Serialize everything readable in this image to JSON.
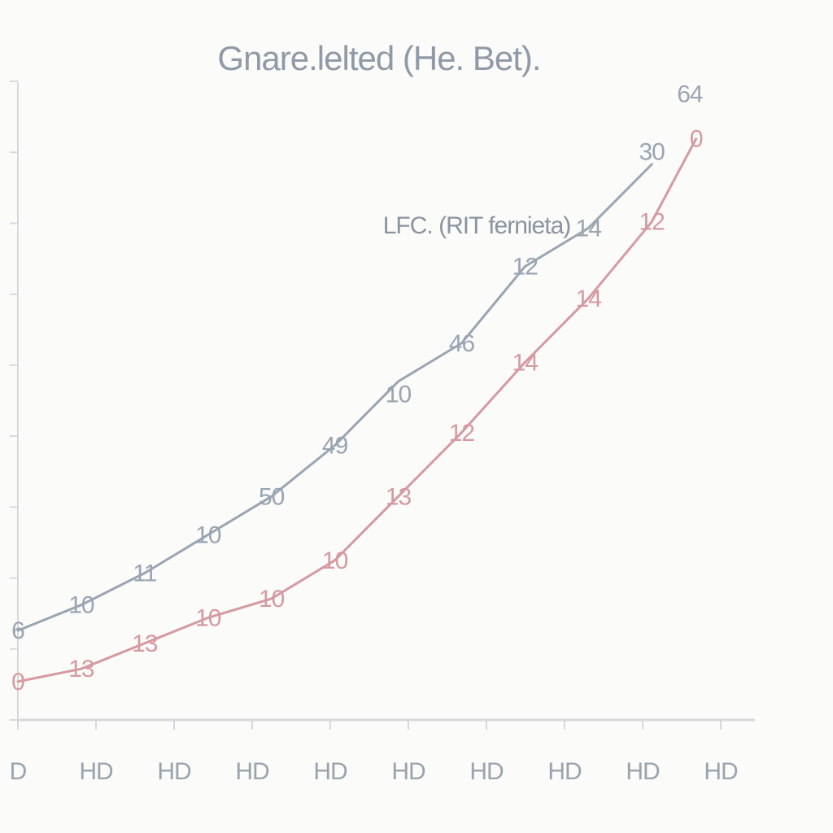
{
  "chart_data": {
    "type": "line",
    "title": "Gnare.lelted (He. Bet).",
    "annotation": "LFC. (RIT fernieta)",
    "xlabel": "",
    "ylabel": "",
    "categories": [
      "H",
      "H",
      "H",
      "H",
      "H",
      "H",
      "H",
      "H",
      "H",
      "H"
    ],
    "x_tick_labels": [
      "D",
      "HD",
      "HD",
      "HD",
      "HD",
      "HD",
      "HD",
      "HD",
      "HD",
      "HD"
    ],
    "x_count": 11,
    "ylim": [
      0,
      100
    ],
    "grid": false,
    "series": [
      {
        "color": "#9aa5b2",
        "x": [
          0,
          1,
          2,
          3,
          4,
          5,
          6,
          7,
          8,
          9,
          10
        ],
        "values": [
          14,
          18,
          23,
          29,
          35,
          43,
          53,
          59,
          71,
          77,
          87
        ],
        "labels": [
          "6",
          "10",
          "11",
          "10",
          "50",
          "49",
          "10",
          "46",
          "12",
          "14",
          "30",
          "64"
        ],
        "label_x": [
          0,
          1,
          2,
          3,
          4,
          5,
          6,
          7,
          8,
          9,
          10,
          10.6
        ],
        "label_y": [
          14,
          18,
          23,
          29,
          35,
          43,
          51,
          59,
          71,
          77,
          89,
          98
        ]
      },
      {
        "color": "#d59aa0",
        "x": [
          0,
          1,
          2,
          3,
          4,
          5,
          6,
          7,
          8,
          9,
          10,
          10.7
        ],
        "values": [
          6,
          8,
          12,
          16,
          19,
          25,
          35,
          45,
          56,
          66,
          78,
          91
        ],
        "labels": [
          "0",
          "13",
          "13",
          "10",
          "10",
          "10",
          "13",
          "12",
          "14",
          "14",
          "12",
          "0"
        ],
        "label_x": [
          0,
          1,
          2,
          3,
          4,
          5,
          6,
          7,
          8,
          9,
          10,
          10.7
        ],
        "label_y": [
          6,
          8,
          12,
          16,
          19,
          25,
          35,
          45,
          56,
          66,
          78,
          91
        ]
      }
    ]
  }
}
